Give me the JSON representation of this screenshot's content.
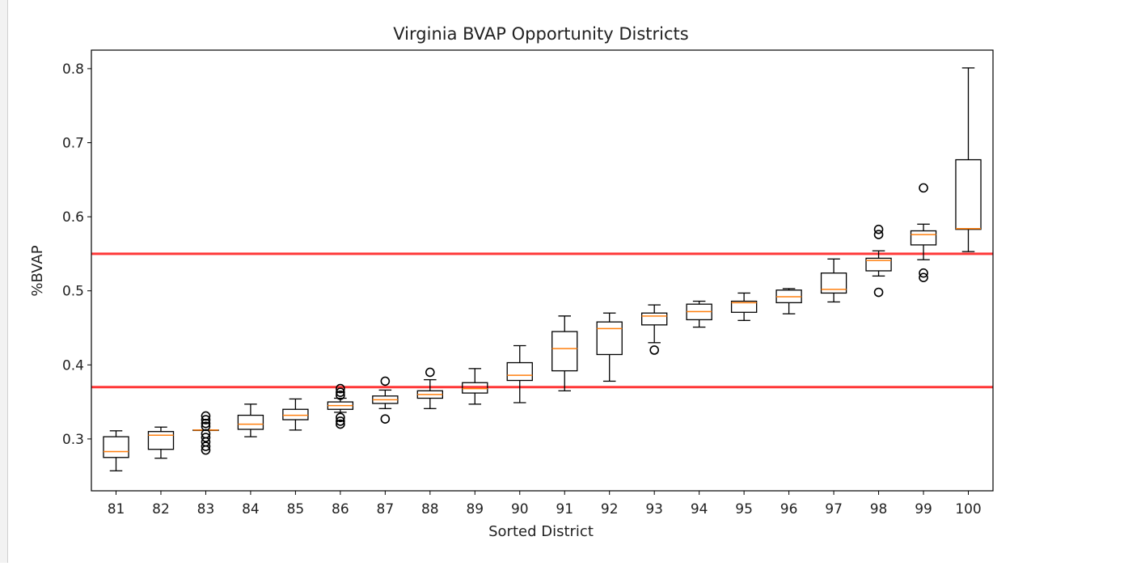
{
  "chart_data": {
    "type": "box",
    "title": "Virginia BVAP Opportunity Districts",
    "xlabel": "Sorted District",
    "ylabel": "%BVAP",
    "ylim": [
      0.23,
      0.825
    ],
    "yticks": [
      0.3,
      0.4,
      0.5,
      0.6,
      0.7,
      0.8
    ],
    "yticklabels": [
      "0.3",
      "0.4",
      "0.5",
      "0.6",
      "0.7",
      "0.8"
    ],
    "grid": false,
    "box_color": "#000000",
    "median_color": "#ff7f0e",
    "reference_line_color": "#ff0000",
    "reference_lines": [
      0.37,
      0.55
    ],
    "boxes": [
      {
        "label": "81",
        "whislo": 0.257,
        "q1": 0.275,
        "med": 0.283,
        "q3": 0.303,
        "whishi": 0.311,
        "fliers": []
      },
      {
        "label": "82",
        "whislo": 0.274,
        "q1": 0.286,
        "med": 0.305,
        "q3": 0.31,
        "whishi": 0.316,
        "fliers": []
      },
      {
        "label": "83",
        "whislo": 0.312,
        "q1": 0.312,
        "med": 0.312,
        "q3": 0.312,
        "whishi": 0.312,
        "fliers": [
          0.285,
          0.29,
          0.296,
          0.302,
          0.307,
          0.317,
          0.321,
          0.326,
          0.331
        ]
      },
      {
        "label": "84",
        "whislo": 0.303,
        "q1": 0.313,
        "med": 0.32,
        "q3": 0.332,
        "whishi": 0.347,
        "fliers": []
      },
      {
        "label": "85",
        "whislo": 0.312,
        "q1": 0.326,
        "med": 0.332,
        "q3": 0.34,
        "whishi": 0.354,
        "fliers": []
      },
      {
        "label": "86",
        "whislo": 0.336,
        "q1": 0.34,
        "med": 0.345,
        "q3": 0.35,
        "whishi": 0.355,
        "fliers": [
          0.32,
          0.324,
          0.329,
          0.359,
          0.363,
          0.368
        ]
      },
      {
        "label": "87",
        "whislo": 0.341,
        "q1": 0.348,
        "med": 0.353,
        "q3": 0.358,
        "whishi": 0.366,
        "fliers": [
          0.327,
          0.378
        ]
      },
      {
        "label": "88",
        "whislo": 0.341,
        "q1": 0.355,
        "med": 0.36,
        "q3": 0.365,
        "whishi": 0.38,
        "fliers": [
          0.39
        ]
      },
      {
        "label": "89",
        "whislo": 0.347,
        "q1": 0.362,
        "med": 0.368,
        "q3": 0.376,
        "whishi": 0.395,
        "fliers": []
      },
      {
        "label": "90",
        "whislo": 0.349,
        "q1": 0.379,
        "med": 0.386,
        "q3": 0.403,
        "whishi": 0.426,
        "fliers": []
      },
      {
        "label": "91",
        "whislo": 0.365,
        "q1": 0.392,
        "med": 0.422,
        "q3": 0.445,
        "whishi": 0.466,
        "fliers": []
      },
      {
        "label": "92",
        "whislo": 0.378,
        "q1": 0.414,
        "med": 0.449,
        "q3": 0.458,
        "whishi": 0.47,
        "fliers": []
      },
      {
        "label": "93",
        "whislo": 0.43,
        "q1": 0.454,
        "med": 0.466,
        "q3": 0.47,
        "whishi": 0.481,
        "fliers": [
          0.42
        ]
      },
      {
        "label": "94",
        "whislo": 0.451,
        "q1": 0.461,
        "med": 0.472,
        "q3": 0.482,
        "whishi": 0.486,
        "fliers": []
      },
      {
        "label": "95",
        "whislo": 0.46,
        "q1": 0.471,
        "med": 0.484,
        "q3": 0.486,
        "whishi": 0.497,
        "fliers": []
      },
      {
        "label": "96",
        "whislo": 0.469,
        "q1": 0.484,
        "med": 0.492,
        "q3": 0.501,
        "whishi": 0.503,
        "fliers": []
      },
      {
        "label": "97",
        "whislo": 0.485,
        "q1": 0.497,
        "med": 0.502,
        "q3": 0.524,
        "whishi": 0.543,
        "fliers": []
      },
      {
        "label": "98",
        "whislo": 0.52,
        "q1": 0.527,
        "med": 0.541,
        "q3": 0.544,
        "whishi": 0.554,
        "fliers": [
          0.498,
          0.576,
          0.583
        ]
      },
      {
        "label": "99",
        "whislo": 0.542,
        "q1": 0.562,
        "med": 0.576,
        "q3": 0.581,
        "whishi": 0.59,
        "fliers": [
          0.518,
          0.524,
          0.639
        ]
      },
      {
        "label": "100",
        "whislo": 0.553,
        "q1": 0.583,
        "med": 0.584,
        "q3": 0.677,
        "whishi": 0.801,
        "fliers": []
      }
    ]
  }
}
